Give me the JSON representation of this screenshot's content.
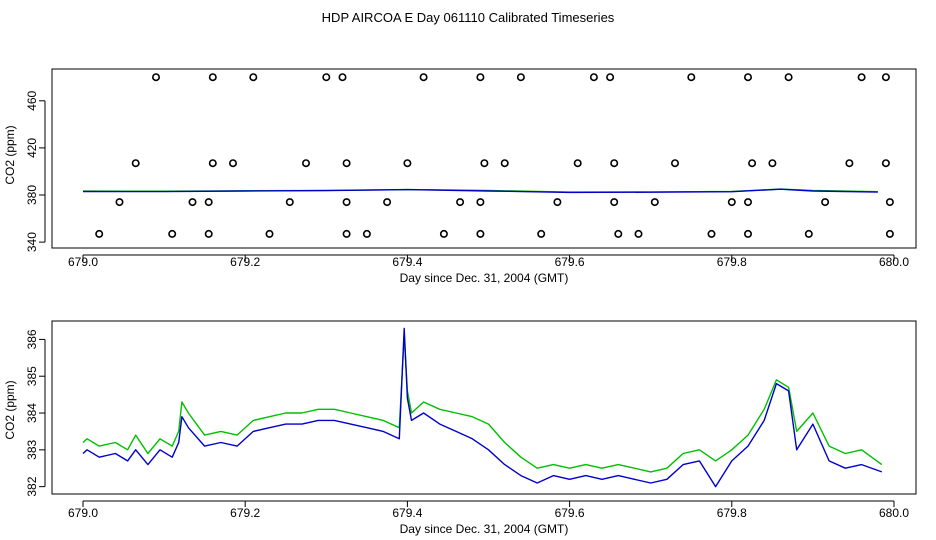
{
  "page_title": "HDP AIRCOA E  Day 061110  Calibrated Timeseries",
  "colors": {
    "green": "#00c000",
    "blue": "#0000cc",
    "axis": "#000000"
  },
  "chart_data": [
    {
      "type": "scatter+line",
      "xlabel": "Day since Dec. 31, 2004 (GMT)",
      "ylabel": "CO2 (ppm)",
      "xlim": [
        679.0,
        680.0
      ],
      "ylim": [
        335,
        487
      ],
      "xticks": [
        "679.0",
        "679.2",
        "679.4",
        "679.6",
        "679.8",
        "680.0"
      ],
      "yticks": [
        "340",
        "380",
        "420",
        "460"
      ],
      "ytick_values": [
        340,
        380,
        420,
        460
      ],
      "calibration_points": [
        {
          "x": 679.09,
          "y": 480
        },
        {
          "x": 679.16,
          "y": 480
        },
        {
          "x": 679.21,
          "y": 480
        },
        {
          "x": 679.3,
          "y": 480
        },
        {
          "x": 679.32,
          "y": 480
        },
        {
          "x": 679.42,
          "y": 480
        },
        {
          "x": 679.49,
          "y": 480
        },
        {
          "x": 679.54,
          "y": 480
        },
        {
          "x": 679.63,
          "y": 480
        },
        {
          "x": 679.65,
          "y": 480
        },
        {
          "x": 679.75,
          "y": 480
        },
        {
          "x": 679.82,
          "y": 480
        },
        {
          "x": 679.87,
          "y": 480
        },
        {
          "x": 679.96,
          "y": 480
        },
        {
          "x": 679.99,
          "y": 480
        },
        {
          "x": 679.065,
          "y": 407
        },
        {
          "x": 679.16,
          "y": 407
        },
        {
          "x": 679.185,
          "y": 407
        },
        {
          "x": 679.275,
          "y": 407
        },
        {
          "x": 679.325,
          "y": 407
        },
        {
          "x": 679.4,
          "y": 407
        },
        {
          "x": 679.495,
          "y": 407
        },
        {
          "x": 679.52,
          "y": 407
        },
        {
          "x": 679.61,
          "y": 407
        },
        {
          "x": 679.655,
          "y": 407
        },
        {
          "x": 679.73,
          "y": 407
        },
        {
          "x": 679.825,
          "y": 407
        },
        {
          "x": 679.85,
          "y": 407
        },
        {
          "x": 679.945,
          "y": 407
        },
        {
          "x": 679.99,
          "y": 407
        },
        {
          "x": 679.045,
          "y": 374
        },
        {
          "x": 679.135,
          "y": 374
        },
        {
          "x": 679.155,
          "y": 374
        },
        {
          "x": 679.255,
          "y": 374
        },
        {
          "x": 679.325,
          "y": 374
        },
        {
          "x": 679.375,
          "y": 374
        },
        {
          "x": 679.465,
          "y": 374
        },
        {
          "x": 679.49,
          "y": 374
        },
        {
          "x": 679.585,
          "y": 374
        },
        {
          "x": 679.655,
          "y": 374
        },
        {
          "x": 679.705,
          "y": 374
        },
        {
          "x": 679.8,
          "y": 374
        },
        {
          "x": 679.82,
          "y": 374
        },
        {
          "x": 679.915,
          "y": 374
        },
        {
          "x": 679.995,
          "y": 374
        },
        {
          "x": 679.02,
          "y": 347
        },
        {
          "x": 679.11,
          "y": 347
        },
        {
          "x": 679.155,
          "y": 347
        },
        {
          "x": 679.23,
          "y": 347
        },
        {
          "x": 679.325,
          "y": 347
        },
        {
          "x": 679.35,
          "y": 347
        },
        {
          "x": 679.445,
          "y": 347
        },
        {
          "x": 679.49,
          "y": 347
        },
        {
          "x": 679.565,
          "y": 347
        },
        {
          "x": 679.66,
          "y": 347
        },
        {
          "x": 679.685,
          "y": 347
        },
        {
          "x": 679.775,
          "y": 347
        },
        {
          "x": 679.82,
          "y": 347
        },
        {
          "x": 679.895,
          "y": 347
        },
        {
          "x": 679.995,
          "y": 347
        }
      ],
      "series": [
        {
          "name": "green",
          "color": "#00c000",
          "x": [
            679.0,
            679.1,
            679.2,
            679.3,
            679.4,
            679.5,
            679.6,
            679.7,
            679.8,
            679.86,
            679.9,
            679.98
          ],
          "values": [
            383.3,
            383.2,
            383.6,
            383.9,
            384.6,
            383.8,
            382.5,
            382.6,
            383.0,
            385.0,
            383.8,
            382.8
          ]
        },
        {
          "name": "blue",
          "color": "#0000cc",
          "x": [
            679.0,
            679.1,
            679.2,
            679.3,
            679.4,
            679.5,
            679.6,
            679.7,
            679.8,
            679.86,
            679.9,
            679.98
          ],
          "values": [
            383.0,
            382.9,
            383.4,
            383.7,
            384.6,
            383.4,
            382.2,
            382.4,
            382.8,
            384.9,
            383.4,
            382.5
          ]
        }
      ]
    },
    {
      "type": "line",
      "xlabel": "Day since Dec. 31, 2004 (GMT)",
      "ylabel": "CO2 (ppm)",
      "xlim": [
        679.0,
        680.0
      ],
      "ylim": [
        381.8,
        386.5
      ],
      "xticks": [
        "679.0",
        "679.2",
        "679.4",
        "679.6",
        "679.8",
        "680.0"
      ],
      "yticks": [
        "382",
        "383",
        "384",
        "385",
        "386"
      ],
      "ytick_values": [
        382,
        383,
        384,
        385,
        386
      ],
      "series": [
        {
          "name": "green",
          "color": "#00c000",
          "x": [
            679.0,
            679.005,
            679.02,
            679.04,
            679.055,
            679.065,
            679.08,
            679.095,
            679.11,
            679.118,
            679.122,
            679.13,
            679.15,
            679.17,
            679.19,
            679.21,
            679.23,
            679.25,
            679.27,
            679.29,
            679.31,
            679.33,
            679.35,
            679.37,
            679.39,
            679.396,
            679.4,
            679.405,
            679.42,
            679.44,
            679.46,
            679.48,
            679.5,
            679.52,
            679.54,
            679.56,
            679.58,
            679.6,
            679.62,
            679.64,
            679.66,
            679.68,
            679.7,
            679.72,
            679.74,
            679.76,
            679.78,
            679.8,
            679.82,
            679.84,
            679.855,
            679.87,
            679.88,
            679.9,
            679.92,
            679.94,
            679.96,
            679.985
          ],
          "values": [
            383.2,
            383.3,
            383.1,
            383.2,
            383.0,
            383.4,
            382.9,
            383.3,
            383.1,
            383.5,
            384.3,
            384.0,
            383.4,
            383.5,
            383.4,
            383.8,
            383.9,
            384.0,
            384.0,
            384.1,
            384.1,
            384.0,
            383.9,
            383.8,
            383.6,
            386.1,
            384.6,
            384.0,
            384.3,
            384.1,
            384.0,
            383.9,
            383.7,
            383.2,
            382.8,
            382.5,
            382.6,
            382.5,
            382.6,
            382.5,
            382.6,
            382.5,
            382.4,
            382.5,
            382.9,
            383.0,
            382.7,
            383.0,
            383.4,
            384.1,
            384.9,
            384.7,
            383.5,
            384.0,
            383.1,
            382.9,
            383.0,
            382.6
          ]
        },
        {
          "name": "blue",
          "color": "#0000cc",
          "x": [
            679.0,
            679.005,
            679.02,
            679.04,
            679.055,
            679.065,
            679.08,
            679.095,
            679.11,
            679.118,
            679.122,
            679.13,
            679.15,
            679.17,
            679.19,
            679.21,
            679.23,
            679.25,
            679.27,
            679.29,
            679.31,
            679.33,
            679.35,
            679.37,
            679.39,
            679.396,
            679.4,
            679.405,
            679.42,
            679.44,
            679.46,
            679.48,
            679.5,
            679.52,
            679.54,
            679.56,
            679.58,
            679.6,
            679.62,
            679.64,
            679.66,
            679.68,
            679.7,
            679.72,
            679.74,
            679.76,
            679.78,
            679.8,
            679.82,
            679.84,
            679.855,
            679.87,
            679.88,
            679.9,
            679.92,
            679.94,
            679.96,
            679.985
          ],
          "values": [
            382.9,
            383.0,
            382.8,
            382.9,
            382.7,
            383.0,
            382.6,
            383.0,
            382.8,
            383.2,
            383.9,
            383.6,
            383.1,
            383.2,
            383.1,
            383.5,
            383.6,
            383.7,
            383.7,
            383.8,
            383.8,
            383.7,
            383.6,
            383.5,
            383.3,
            386.3,
            384.4,
            383.8,
            384.0,
            383.7,
            383.5,
            383.3,
            383.0,
            382.6,
            382.3,
            382.1,
            382.3,
            382.2,
            382.3,
            382.2,
            382.3,
            382.2,
            382.1,
            382.2,
            382.6,
            382.7,
            382.0,
            382.7,
            383.1,
            383.8,
            384.8,
            384.6,
            383.0,
            383.7,
            382.7,
            382.5,
            382.6,
            382.4
          ]
        }
      ]
    }
  ]
}
